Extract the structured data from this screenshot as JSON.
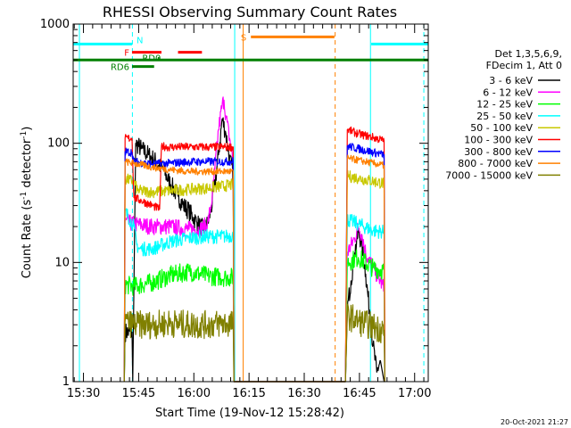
{
  "chart_data": {
    "type": "line",
    "title": "RHESSI Observing Summary Count Rates",
    "xlabel": "Start Time (19-Nov-12 15:28:42)",
    "ylabel_main": "Count Rate (s",
    "ylabel_sup1": "-1",
    "ylabel_mid": " detector",
    "ylabel_sup2": "-1",
    "ylabel_end": ")",
    "yscale": "log",
    "xlim_minutes": [
      -1.5,
      95
    ],
    "ylim": [
      1,
      1000
    ],
    "xticks": [
      {
        "m": 1.3,
        "label": "15:30"
      },
      {
        "m": 16.3,
        "label": "15:45"
      },
      {
        "m": 31.3,
        "label": "16:00"
      },
      {
        "m": 46.3,
        "label": "16:15"
      },
      {
        "m": 61.3,
        "label": "16:30"
      },
      {
        "m": 76.3,
        "label": "16:45"
      },
      {
        "m": 91.3,
        "label": "17:00"
      }
    ],
    "yticks": [
      {
        "v": 1,
        "label": "1"
      },
      {
        "v": 10,
        "label": "10"
      },
      {
        "v": 100,
        "label": "100"
      },
      {
        "v": 1000,
        "label": "1000"
      }
    ],
    "legend": {
      "header": [
        "Det 1,3,5,6,9,",
        "FDecim 1, Att 0"
      ],
      "placement": "right",
      "entries": [
        {
          "name": "3 - 6 keV",
          "color": "#000000"
        },
        {
          "name": "6 - 12 keV",
          "color": "#ff00ff"
        },
        {
          "name": "12 - 25 keV",
          "color": "#00ff00"
        },
        {
          "name": "25 - 50 keV",
          "color": "#00ffff"
        },
        {
          "name": "50 - 100 keV",
          "color": "#c8c800"
        },
        {
          "name": "100 - 300 keV",
          "color": "#ff0000"
        },
        {
          "name": "300 - 800 keV",
          "color": "#0000ff"
        },
        {
          "name": "800 - 7000 keV",
          "color": "#ff8000"
        },
        {
          "name": "7000 - 15000 keV",
          "color": "#808000"
        }
      ]
    },
    "flag_bars": [
      {
        "label": "N",
        "color": "#00ffff",
        "ranges": [
          [
            -1.5,
            14.5
          ],
          [
            79.5,
            95
          ]
        ],
        "level": 680
      },
      {
        "label": "F",
        "color": "#ff0000",
        "ranges": [
          [
            14.5,
            22.5
          ],
          [
            27.0,
            33.5
          ]
        ],
        "level": 580
      },
      {
        "label": "RD0",
        "color": "#008000",
        "ranges": [
          [
            21.5,
            21.9
          ]
        ],
        "level": 515
      },
      {
        "label": "S",
        "color": "#ff8000",
        "ranges": [
          [
            46.8,
            69.5
          ]
        ],
        "level": 780
      },
      {
        "label": "",
        "color": "#008000",
        "ranges": [
          [
            -1.5,
            95
          ]
        ],
        "level": 500
      },
      {
        "label": "RD6",
        "color": "#008000",
        "ranges": [
          [
            14.5,
            20.5
          ]
        ],
        "level": 440
      }
    ],
    "vlines": [
      {
        "m": 0.2,
        "color": "#00ffff",
        "dash": false
      },
      {
        "m": 14.6,
        "color": "#00ffff",
        "dash": true
      },
      {
        "m": 42.4,
        "color": "#00ffff",
        "dash": false
      },
      {
        "m": 44.7,
        "color": "#ff8000",
        "dash": false
      },
      {
        "m": 69.7,
        "color": "#ff8000",
        "dash": true
      },
      {
        "m": 79.3,
        "color": "#00ffff",
        "dash": false
      },
      {
        "m": 93.8,
        "color": "#00ffff",
        "dash": true
      }
    ],
    "series": [
      {
        "name": "3 - 6 keV",
        "color": "#000000",
        "x": [
          12.4,
          12.6,
          14.5,
          14.7,
          15.5,
          17,
          19,
          21,
          23,
          25,
          27,
          28.5,
          30,
          31,
          32,
          33,
          34,
          35,
          36,
          37,
          38,
          39,
          40,
          41,
          42,
          42.2,
          72.5,
          73,
          74,
          75,
          76,
          77,
          78,
          79,
          80,
          81,
          82,
          83,
          83.2
        ],
        "y": [
          1,
          2.6,
          2.6,
          1,
          100,
          90,
          80,
          70,
          60,
          45,
          36,
          30,
          27,
          24,
          22,
          20,
          19,
          21,
          28,
          45,
          80,
          160,
          120,
          75,
          55,
          1,
          1,
          4,
          7,
          12,
          18,
          14,
          8,
          4,
          2,
          1.2,
          1.5,
          1,
          1
        ]
      },
      {
        "name": "6 - 12 keV",
        "color": "#ff00ff",
        "x": [
          12.4,
          12.6,
          15,
          20,
          25,
          30,
          33,
          35,
          36,
          37,
          38,
          39,
          39.5,
          40,
          41,
          42,
          42.2,
          72.5,
          73,
          75,
          76,
          77,
          78,
          80,
          82,
          83,
          83.2
        ],
        "y": [
          1,
          22,
          21,
          20,
          20,
          19,
          19,
          21,
          30,
          60,
          130,
          210,
          230,
          170,
          110,
          70,
          1,
          1,
          12,
          16,
          20,
          17,
          12,
          9,
          7,
          6,
          1
        ]
      },
      {
        "name": "12 - 25 keV",
        "color": "#00ff00",
        "x": [
          12.4,
          12.6,
          15,
          20,
          25,
          30,
          35,
          40,
          42,
          42.2,
          72.5,
          73,
          76,
          80,
          83,
          83.2
        ],
        "y": [
          1,
          6.5,
          6.3,
          6.8,
          7.8,
          8.4,
          7.7,
          7.5,
          7.5,
          1,
          1,
          10,
          11,
          9,
          8.5,
          1
        ]
      },
      {
        "name": "25 - 50 keV",
        "color": "#00ffff",
        "x": [
          12.4,
          12.6,
          15,
          15.8,
          16.5,
          20,
          25,
          30,
          35,
          40,
          42,
          42.2,
          72.5,
          73,
          76,
          80,
          83,
          83.2
        ],
        "y": [
          1,
          27,
          20,
          14,
          13,
          13,
          15,
          16,
          16.5,
          16.5,
          17,
          1,
          1,
          23,
          21,
          18.5,
          18,
          1
        ]
      },
      {
        "name": "50 - 100 keV",
        "color": "#c8c800",
        "x": [
          12.4,
          12.6,
          15,
          16,
          20,
          25,
          30,
          35,
          40,
          42,
          42.2,
          72.5,
          73,
          76,
          80,
          83,
          83.2
        ],
        "y": [
          1,
          50,
          48,
          40,
          39,
          40,
          41,
          42,
          44,
          45,
          1,
          1,
          53,
          51,
          48,
          46,
          1
        ]
      },
      {
        "name": "100 - 300 keV",
        "color": "#ff0000",
        "x": [
          12.4,
          12.6,
          14.5,
          15,
          17,
          20,
          22,
          22.5,
          24,
          30,
          35,
          40,
          42,
          42.2,
          72.5,
          73,
          76,
          80,
          83,
          83.2
        ],
        "y": [
          1,
          110,
          110,
          35,
          33,
          30,
          28,
          95,
          93,
          93,
          93,
          93,
          93,
          1,
          1,
          130,
          120,
          112,
          105,
          1
        ]
      },
      {
        "name": "300 - 800 keV",
        "color": "#0000ff",
        "x": [
          12.4,
          12.6,
          14.5,
          15,
          20,
          25,
          30,
          35,
          40,
          42,
          42.2,
          72.5,
          73,
          76,
          80,
          83,
          83.2
        ],
        "y": [
          1,
          85,
          84,
          70,
          67,
          68,
          70,
          70,
          70,
          71,
          1,
          1,
          95,
          90,
          84,
          80,
          1
        ]
      },
      {
        "name": "800 - 7000 keV",
        "color": "#ff8000",
        "x": [
          12.4,
          12.6,
          15,
          20,
          25,
          30,
          35,
          40,
          42,
          42.2,
          72.5,
          73,
          76,
          80,
          83,
          83.2
        ],
        "y": [
          1,
          70,
          68,
          63,
          60,
          58,
          58,
          58,
          58,
          1,
          1,
          75,
          72,
          68,
          65,
          1
        ]
      },
      {
        "name": "7000 - 15000 keV",
        "color": "#808000",
        "x": [
          12.4,
          12.6,
          15,
          20,
          25,
          30,
          35,
          40,
          42,
          42.2,
          72.5,
          73,
          76,
          80,
          83,
          83.2
        ],
        "y": [
          1,
          3.2,
          3.0,
          3.0,
          3.1,
          3.0,
          3.0,
          3.1,
          3.0,
          1,
          1,
          3.6,
          3.2,
          2.9,
          2.7,
          1
        ]
      }
    ],
    "datestamp": "20-Oct-2021 21:27"
  }
}
